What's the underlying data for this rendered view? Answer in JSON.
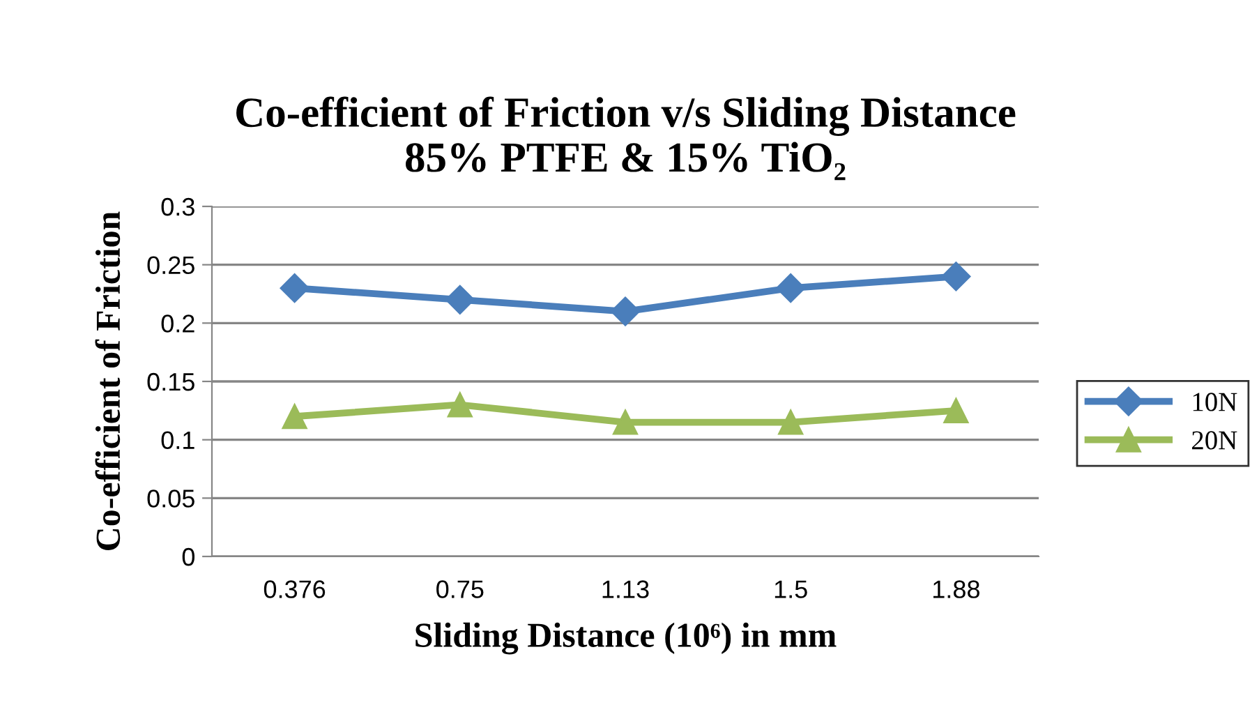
{
  "chart_data": {
    "type": "line",
    "title": "Co-efficient of Friction v/s Sliding Distance\n85% PTFE & 15% TiO₂",
    "xlabel": "Sliding Distance (10⁶) in mm",
    "ylabel": "Co-efficient of Friction",
    "categories": [
      "0.376",
      "0.75",
      "1.13",
      "1.5",
      "1.88"
    ],
    "series": [
      {
        "name": "10N",
        "color": "#4a7ebb",
        "marker": "diamond",
        "values": [
          0.23,
          0.22,
          0.21,
          0.23,
          0.24
        ]
      },
      {
        "name": "20N",
        "color": "#9bbb59",
        "marker": "triangle",
        "values": [
          0.12,
          0.13,
          0.115,
          0.115,
          0.125
        ]
      }
    ],
    "ylim": [
      0,
      0.3
    ],
    "yticks": [
      0,
      0.05,
      0.1,
      0.15,
      0.2,
      0.25,
      0.3
    ],
    "grid": "y",
    "legend": "right",
    "line_style": "solid"
  }
}
